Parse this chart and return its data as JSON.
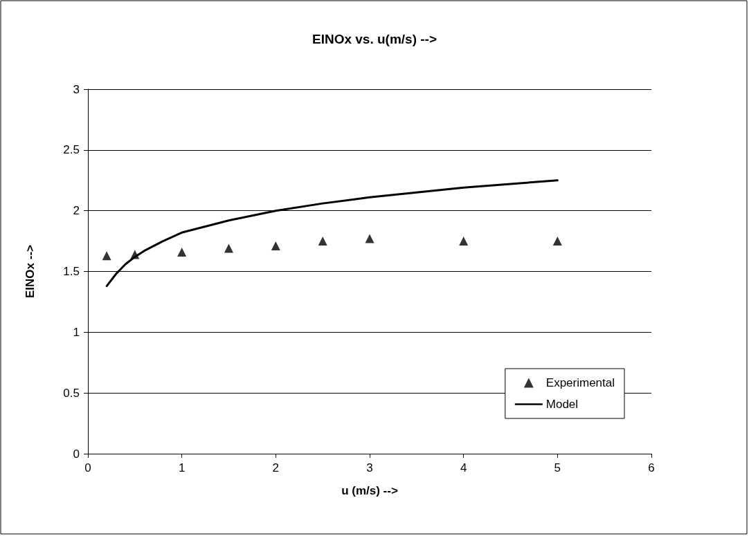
{
  "chart_data": {
    "type": "scatter",
    "title": "EINOx vs. u(m/s) -->",
    "xlabel": "u (m/s) -->",
    "ylabel": "EINOx -->",
    "xlim": [
      0,
      6
    ],
    "xticks": [
      0,
      1,
      2,
      3,
      4,
      5,
      6
    ],
    "ylim": [
      0,
      3
    ],
    "yticks": [
      0,
      0.5,
      1,
      1.5,
      2,
      2.5,
      3
    ],
    "grid": "y",
    "legend": "bottom right",
    "series": [
      {
        "name": "Experimental",
        "marker": "triangle",
        "color": "#000000",
        "x": [
          0.2,
          0.5,
          1,
          1.5,
          2,
          2.5,
          3,
          4,
          5
        ],
        "values": [
          1.63,
          1.64,
          1.66,
          1.69,
          1.71,
          1.75,
          1.77,
          1.75,
          1.75
        ]
      },
      {
        "name": "Model",
        "type": "line",
        "marker": "none",
        "line_style": "solid",
        "color": "#000000",
        "x": [
          0.2,
          0.3,
          0.4,
          0.5,
          0.6,
          0.7,
          0.8,
          1,
          1.25,
          1.5,
          1.75,
          2,
          2.5,
          3,
          3.5,
          4,
          4.5,
          5
        ],
        "values": [
          1.38,
          1.48,
          1.56,
          1.62,
          1.67,
          1.71,
          1.75,
          1.82,
          1.87,
          1.92,
          1.96,
          2.0,
          2.06,
          2.11,
          2.15,
          2.19,
          2.22,
          2.25
        ]
      }
    ]
  }
}
